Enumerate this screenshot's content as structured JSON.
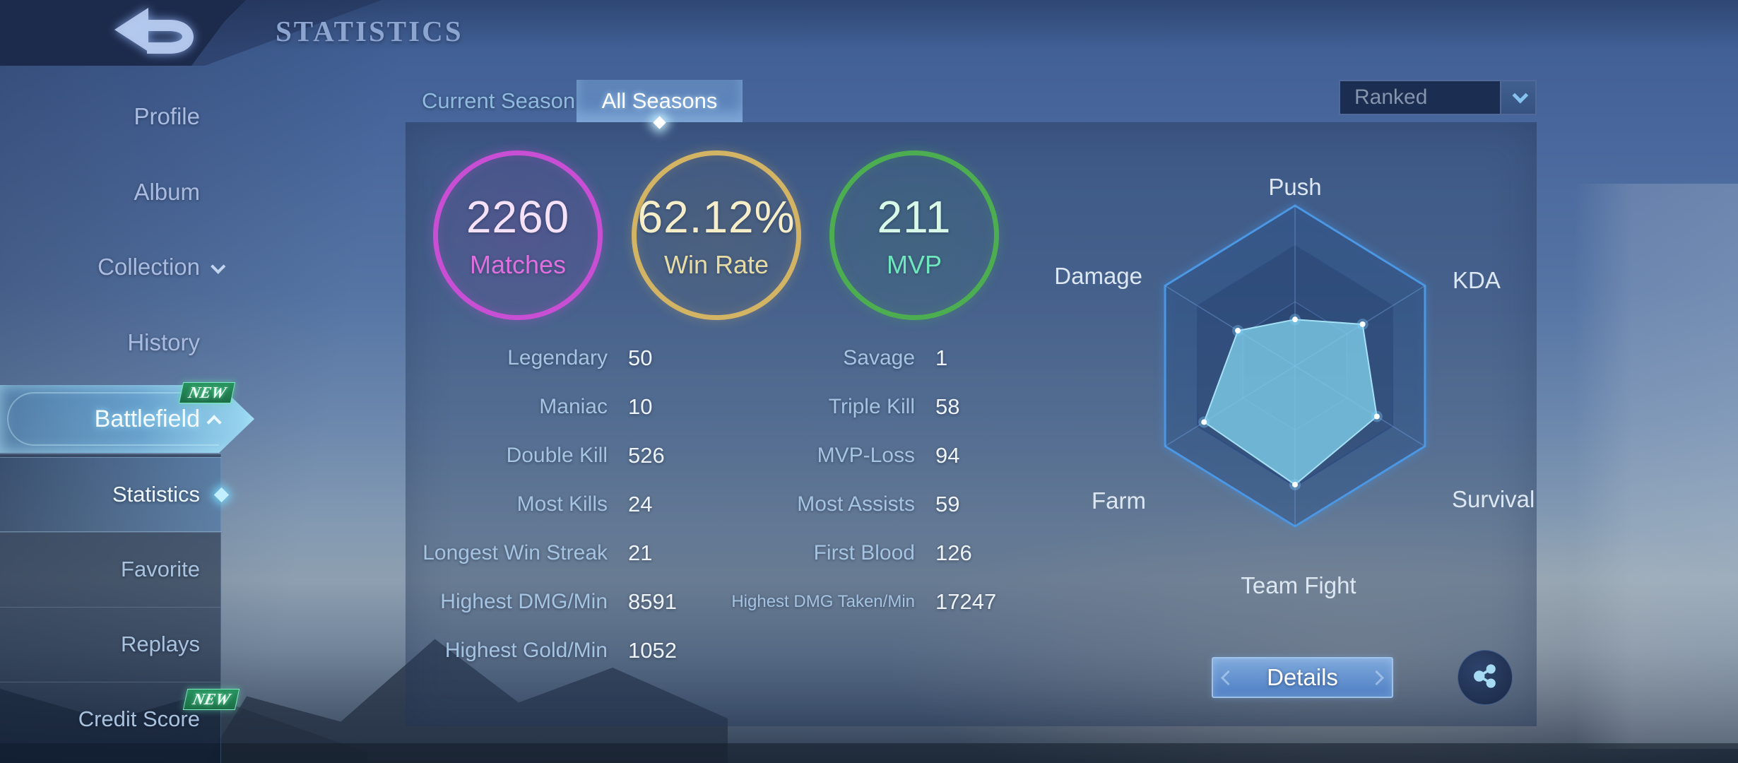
{
  "header": {
    "title": "STATISTICS"
  },
  "icons": {
    "back": "back-undo-arrow",
    "collection_chevron": "chevron-down",
    "battlefield_chevron": "chevron-up",
    "dropdown_chevron": "chevron-down",
    "statistics_marker": "diamond",
    "share": "share-network"
  },
  "sidebar": {
    "items": [
      {
        "label": "Profile"
      },
      {
        "label": "Album"
      },
      {
        "label": "Collection"
      },
      {
        "label": "History"
      },
      {
        "label": "Battlefield",
        "badge": "NEW",
        "selected": true
      }
    ],
    "submenu": {
      "items": [
        {
          "label": "Statistics",
          "selected": true
        },
        {
          "label": "Favorite"
        },
        {
          "label": "Replays"
        },
        {
          "label": "Credit Score",
          "badge": "NEW"
        }
      ]
    }
  },
  "tabs": [
    {
      "label": "Current Season",
      "active": false
    },
    {
      "label": "All Seasons",
      "active": true
    }
  ],
  "filter": {
    "value": "Ranked"
  },
  "summary_circles": [
    {
      "value": "2260",
      "label": "Matches",
      "ring_color": "#c84fd4"
    },
    {
      "value": "62.12%",
      "label": "Win Rate",
      "ring_color": "#d2b464"
    },
    {
      "value": "211",
      "label": "MVP",
      "ring_color": "#4cae50"
    }
  ],
  "stats": {
    "left_rows": [
      {
        "label": "Legendary",
        "value": "50"
      },
      {
        "label": "Maniac",
        "value": "10"
      },
      {
        "label": "Double Kill",
        "value": "526"
      },
      {
        "label": "Most Kills",
        "value": "24"
      },
      {
        "label": "Longest Win Streak",
        "value": "21"
      },
      {
        "label": "Highest DMG/Min",
        "value": "8591"
      },
      {
        "label": "Highest Gold/Min",
        "value": "1052"
      }
    ],
    "right_rows": [
      {
        "label": "Savage",
        "value": "1"
      },
      {
        "label": "Triple Kill",
        "value": "58"
      },
      {
        "label": "MVP-Loss",
        "value": "94"
      },
      {
        "label": "Most Assists",
        "value": "59"
      },
      {
        "label": "First Blood",
        "value": "126"
      },
      {
        "label": "Highest DMG Taken/Min",
        "value": "17247"
      }
    ]
  },
  "chart_data": {
    "type": "radar",
    "title": "Performance radar",
    "categories": [
      "Push",
      "KDA",
      "Survival",
      "Team Fight",
      "Farm",
      "Damage"
    ],
    "values": [
      29,
      52,
      63,
      74,
      70,
      44
    ],
    "scale_max": 100,
    "rings": [
      100,
      75,
      40
    ],
    "grid_on": true,
    "fill_color": "#7ecde8",
    "grid_color": "#4b97e3",
    "label_color": "#dde7f2"
  },
  "footer": {
    "details_label": "Details"
  }
}
